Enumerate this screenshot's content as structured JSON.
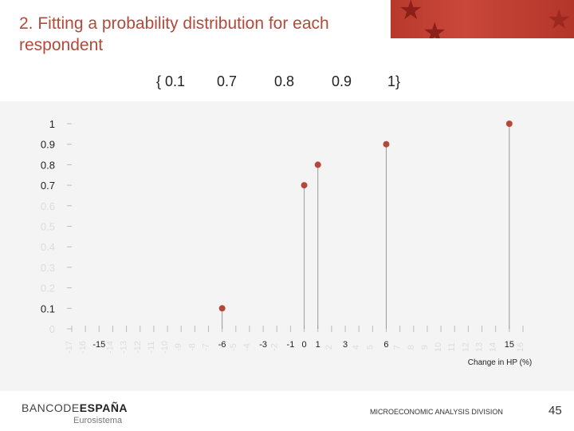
{
  "slide": {
    "title": "2. Fitting a probability distribution for each respondent",
    "set_open": "{ 0.1",
    "set_values": [
      "0.7",
      "0.8",
      "0.9"
    ],
    "set_close": "1}",
    "footer_logo_main": "BANCODE",
    "footer_logo_bold": "ESPAÑA",
    "footer_logo_sub": "Eurosistema",
    "footer_division": "MICROECONOMIC ANALYSIS DIVISION",
    "page_number": "45"
  },
  "colors": {
    "accent": "#b04a3a",
    "point": "#b5483a",
    "stem": "#9a9a9a",
    "faint_label": "#dcdcdc"
  },
  "chart_data": {
    "type": "scatter",
    "title": "",
    "xlabel": "Change in HP (%)",
    "ylabel": "",
    "xlim": [
      -17,
      16
    ],
    "ylim": [
      0,
      1
    ],
    "grid": false,
    "x_ticks": [
      -17,
      -16,
      -15,
      -14,
      -13,
      -12,
      -11,
      -10,
      -9,
      -8,
      -7,
      -6,
      -5,
      -4,
      -3,
      -2,
      -1,
      0,
      1,
      2,
      3,
      4,
      5,
      6,
      7,
      8,
      9,
      10,
      11,
      12,
      13,
      14,
      15,
      16
    ],
    "x_tick_labels_bold": [
      "-15",
      "-6",
      "-3",
      "-1",
      "0",
      "1",
      "3",
      "6",
      "15"
    ],
    "y_ticks": [
      0,
      0.1,
      0.2,
      0.3,
      0.4,
      0.5,
      0.6,
      0.7,
      0.8,
      0.9,
      1
    ],
    "y_tick_labels_bold": [
      "0.1",
      "0.7",
      "0.8",
      "0.9",
      "1"
    ],
    "points": [
      {
        "x": -6,
        "y": 0.1
      },
      {
        "x": 0,
        "y": 0.7
      },
      {
        "x": 1,
        "y": 0.8
      },
      {
        "x": 6,
        "y": 0.9
      },
      {
        "x": 15,
        "y": 1
      }
    ]
  }
}
